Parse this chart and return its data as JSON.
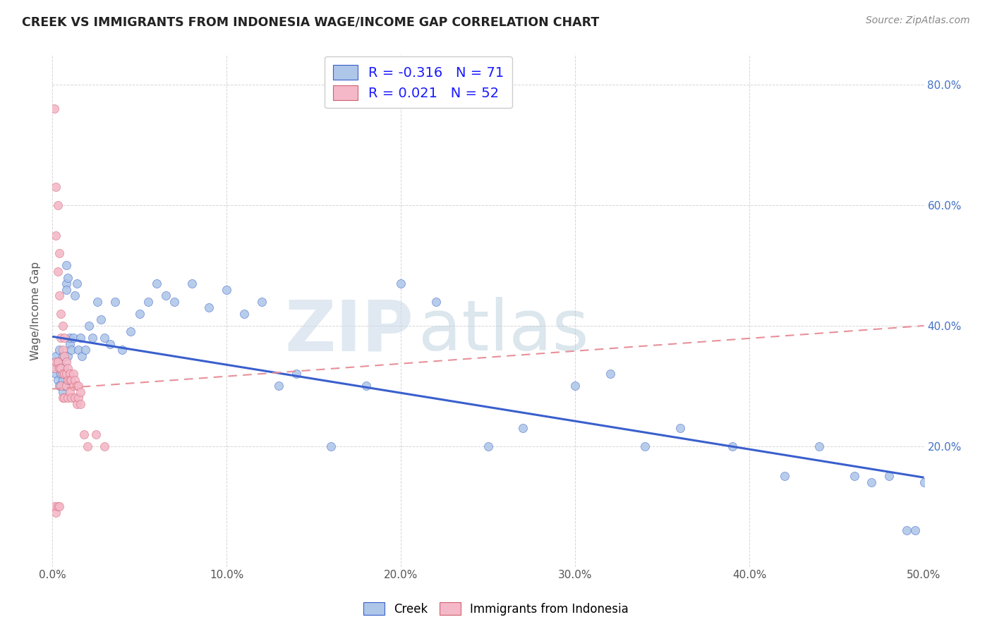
{
  "title": "CREEK VS IMMIGRANTS FROM INDONESIA WAGE/INCOME GAP CORRELATION CHART",
  "source": "Source: ZipAtlas.com",
  "ylabel": "Wage/Income Gap",
  "xlim": [
    0.0,
    0.5
  ],
  "ylim": [
    0.0,
    0.85
  ],
  "xticks": [
    0.0,
    0.1,
    0.2,
    0.3,
    0.4,
    0.5
  ],
  "yticks": [
    0.0,
    0.2,
    0.4,
    0.6,
    0.8
  ],
  "xticklabels": [
    "0.0%",
    "10.0%",
    "20.0%",
    "30.0%",
    "40.0%",
    "50.0%"
  ],
  "yticklabels_right": [
    "",
    "20.0%",
    "40.0%",
    "60.0%",
    "80.0%"
  ],
  "creek_R": -0.316,
  "creek_N": 71,
  "indonesia_R": 0.021,
  "indonesia_N": 52,
  "creek_color": "#aec6e8",
  "indonesia_color": "#f4b8c8",
  "creek_line_color": "#3a5fcd",
  "indonesia_line_color": "#e8909a",
  "watermark_zip": "ZIP",
  "watermark_atlas": "atlas",
  "creek_x": [
    0.001,
    0.002,
    0.002,
    0.003,
    0.003,
    0.004,
    0.004,
    0.005,
    0.005,
    0.005,
    0.006,
    0.006,
    0.006,
    0.007,
    0.007,
    0.007,
    0.008,
    0.008,
    0.008,
    0.009,
    0.009,
    0.01,
    0.01,
    0.011,
    0.012,
    0.013,
    0.014,
    0.015,
    0.016,
    0.017,
    0.019,
    0.021,
    0.023,
    0.026,
    0.028,
    0.03,
    0.033,
    0.036,
    0.04,
    0.045,
    0.05,
    0.055,
    0.06,
    0.065,
    0.07,
    0.08,
    0.09,
    0.1,
    0.11,
    0.12,
    0.13,
    0.14,
    0.16,
    0.18,
    0.2,
    0.22,
    0.25,
    0.27,
    0.3,
    0.32,
    0.34,
    0.36,
    0.39,
    0.42,
    0.44,
    0.46,
    0.47,
    0.48,
    0.49,
    0.495,
    0.5
  ],
  "creek_y": [
    0.33,
    0.35,
    0.32,
    0.34,
    0.31,
    0.36,
    0.3,
    0.33,
    0.32,
    0.34,
    0.31,
    0.35,
    0.29,
    0.33,
    0.32,
    0.3,
    0.47,
    0.5,
    0.46,
    0.48,
    0.35,
    0.37,
    0.38,
    0.36,
    0.38,
    0.45,
    0.47,
    0.36,
    0.38,
    0.35,
    0.36,
    0.4,
    0.38,
    0.44,
    0.41,
    0.38,
    0.37,
    0.44,
    0.36,
    0.39,
    0.42,
    0.44,
    0.47,
    0.45,
    0.44,
    0.47,
    0.43,
    0.46,
    0.42,
    0.44,
    0.3,
    0.32,
    0.2,
    0.3,
    0.47,
    0.44,
    0.2,
    0.23,
    0.3,
    0.32,
    0.2,
    0.23,
    0.2,
    0.15,
    0.2,
    0.15,
    0.14,
    0.15,
    0.06,
    0.06,
    0.14
  ],
  "indonesia_x": [
    0.001,
    0.001,
    0.001,
    0.002,
    0.002,
    0.002,
    0.002,
    0.003,
    0.003,
    0.003,
    0.003,
    0.004,
    0.004,
    0.004,
    0.004,
    0.005,
    0.005,
    0.005,
    0.005,
    0.006,
    0.006,
    0.006,
    0.006,
    0.007,
    0.007,
    0.007,
    0.007,
    0.008,
    0.008,
    0.008,
    0.009,
    0.009,
    0.009,
    0.01,
    0.01,
    0.01,
    0.011,
    0.011,
    0.012,
    0.012,
    0.013,
    0.013,
    0.014,
    0.014,
    0.015,
    0.015,
    0.016,
    0.016,
    0.018,
    0.02,
    0.025,
    0.03
  ],
  "indonesia_y": [
    0.76,
    0.33,
    0.1,
    0.63,
    0.55,
    0.34,
    0.09,
    0.6,
    0.49,
    0.34,
    0.1,
    0.52,
    0.45,
    0.33,
    0.1,
    0.42,
    0.38,
    0.33,
    0.3,
    0.4,
    0.36,
    0.32,
    0.28,
    0.38,
    0.35,
    0.32,
    0.28,
    0.34,
    0.32,
    0.3,
    0.33,
    0.31,
    0.28,
    0.32,
    0.31,
    0.29,
    0.31,
    0.28,
    0.32,
    0.3,
    0.31,
    0.28,
    0.3,
    0.27,
    0.3,
    0.28,
    0.29,
    0.27,
    0.22,
    0.2,
    0.22,
    0.2
  ],
  "creek_trendline_x": [
    0.0,
    0.5
  ],
  "creek_trendline_y": [
    0.382,
    0.148
  ],
  "indonesia_trendline_x": [
    0.0,
    0.5
  ],
  "indonesia_trendline_y": [
    0.295,
    0.4
  ]
}
